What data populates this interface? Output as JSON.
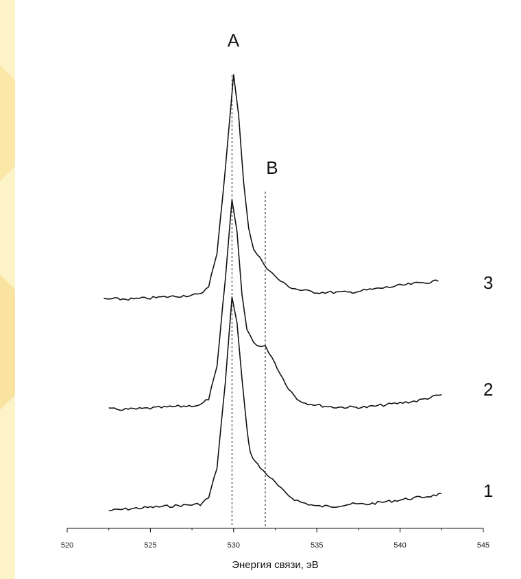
{
  "chart_data": {
    "type": "line",
    "xlabel": "Энергия связи, эВ",
    "xlim": [
      520,
      545
    ],
    "x_ticks": [
      "520",
      "525",
      "530",
      "535",
      "540",
      "545"
    ],
    "y_axis_shown": false,
    "grid": false,
    "markers": [
      {
        "label": "A",
        "x": 529.9
      },
      {
        "label": "B",
        "x": 531.9
      }
    ],
    "series": [
      {
        "name": "1",
        "x": [
          522.5,
          524,
          526,
          528,
          528.5,
          529,
          529.5,
          529.9,
          530.2,
          530.5,
          530.8,
          531.0,
          531.3,
          531.6,
          532,
          532.5,
          533,
          533.5,
          534,
          534.5,
          535,
          536,
          537,
          538,
          539,
          540,
          541,
          542,
          542.5
        ],
        "y": [
          0.0,
          0.01,
          0.02,
          0.03,
          0.06,
          0.2,
          0.6,
          1.0,
          0.88,
          0.62,
          0.38,
          0.27,
          0.23,
          0.2,
          0.17,
          0.13,
          0.09,
          0.06,
          0.04,
          0.03,
          0.02,
          0.02,
          0.03,
          0.03,
          0.04,
          0.05,
          0.06,
          0.07,
          0.08
        ]
      },
      {
        "name": "2",
        "x": [
          522.5,
          524,
          526,
          528,
          528.5,
          529,
          529.5,
          529.9,
          530.2,
          530.5,
          530.8,
          531.2,
          531.6,
          531.9,
          532.3,
          532.8,
          533.3,
          533.8,
          534.3,
          535,
          536,
          537,
          538,
          539,
          540,
          541,
          542,
          542.5
        ],
        "y": [
          0.0,
          0.0,
          0.01,
          0.02,
          0.05,
          0.2,
          0.62,
          1.0,
          0.85,
          0.55,
          0.38,
          0.32,
          0.3,
          0.3,
          0.25,
          0.17,
          0.1,
          0.05,
          0.03,
          0.02,
          0.01,
          0.01,
          0.01,
          0.02,
          0.03,
          0.04,
          0.06,
          0.07
        ]
      },
      {
        "name": "3",
        "x": [
          522.2,
          524,
          526,
          528,
          528.5,
          529,
          529.5,
          530.0,
          530.3,
          530.6,
          530.9,
          531.2,
          531.6,
          532,
          532.5,
          533,
          533.5,
          534,
          535,
          536,
          537,
          538,
          539,
          540,
          541,
          542.3
        ],
        "y": [
          0.0,
          0.0,
          0.01,
          0.02,
          0.06,
          0.2,
          0.58,
          1.0,
          0.82,
          0.52,
          0.32,
          0.22,
          0.18,
          0.14,
          0.1,
          0.07,
          0.05,
          0.04,
          0.03,
          0.03,
          0.03,
          0.04,
          0.05,
          0.06,
          0.07,
          0.08
        ]
      }
    ]
  }
}
